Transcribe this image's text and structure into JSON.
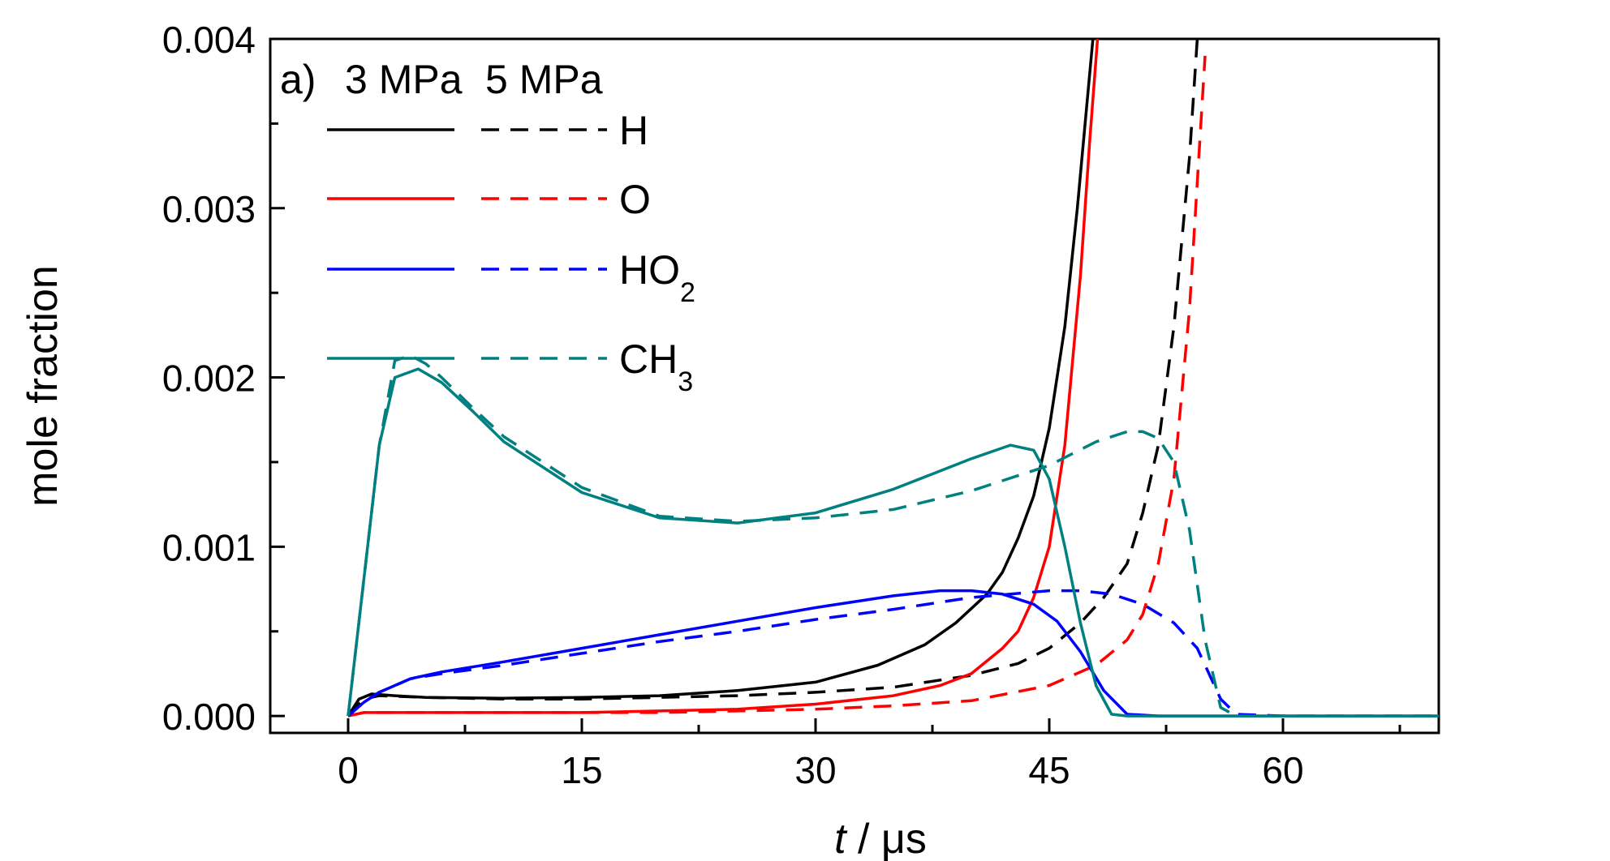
{
  "chart_data": {
    "type": "line",
    "panel_label": "a)",
    "legend_header": [
      "3 MPa",
      "5 MPa"
    ],
    "xlabel_italic": "t",
    "xlabel_rest": " / μs",
    "ylabel": "mole fraction",
    "xlim": [
      -5,
      70
    ],
    "ylim": [
      -0.0001,
      0.004
    ],
    "xticks": [
      0,
      15,
      30,
      45,
      60
    ],
    "xtick_labels": [
      "0",
      "15",
      "30",
      "45",
      "60"
    ],
    "yticks": [
      0.0,
      0.001,
      0.002,
      0.003,
      0.004
    ],
    "ytick_labels": [
      "0.000",
      "0.001",
      "0.002",
      "0.003",
      "0.004"
    ],
    "grid": false,
    "legend_position": "top-left",
    "species": [
      {
        "label": "H",
        "sub": "",
        "color": "#000000"
      },
      {
        "label": "O",
        "sub": "",
        "color": "#ff0000"
      },
      {
        "label": "HO",
        "sub": "2",
        "color": "#0000ff"
      },
      {
        "label": "CH",
        "sub": "3",
        "color": "#008080"
      }
    ],
    "series": [
      {
        "species": "H",
        "pressure": "3 MPa",
        "style": "solid",
        "color": "#000000",
        "x": [
          0,
          0.7,
          1.5,
          3,
          5,
          10,
          15,
          20,
          25,
          30,
          34,
          37,
          39,
          41,
          42,
          43,
          44,
          45,
          46,
          46.8,
          47.4,
          47.8
        ],
        "y": [
          0.0,
          0.0001,
          0.00013,
          0.00012,
          0.00011,
          0.000105,
          0.00011,
          0.00012,
          0.00015,
          0.0002,
          0.0003,
          0.00042,
          0.00055,
          0.00072,
          0.00085,
          0.00105,
          0.0013,
          0.0017,
          0.0023,
          0.003,
          0.0036,
          0.004
        ]
      },
      {
        "species": "H",
        "pressure": "5 MPa",
        "style": "dashed",
        "color": "#000000",
        "x": [
          0,
          1,
          2,
          5,
          10,
          15,
          20,
          25,
          30,
          35,
          40,
          43,
          45,
          47,
          48.5,
          50,
          51,
          52,
          53,
          54,
          54.5
        ],
        "y": [
          0.0,
          0.0001,
          0.00012,
          0.00011,
          0.0001,
          0.0001,
          0.00011,
          0.00012,
          0.00014,
          0.00017,
          0.00024,
          0.00031,
          0.0004,
          0.00055,
          0.0007,
          0.0009,
          0.0012,
          0.0016,
          0.0023,
          0.0033,
          0.004
        ]
      },
      {
        "species": "O",
        "pressure": "3 MPa",
        "style": "solid",
        "color": "#ff0000",
        "x": [
          0,
          1,
          5,
          10,
          15,
          20,
          25,
          30,
          35,
          38,
          40,
          42,
          43,
          44,
          45,
          46,
          47,
          47.6,
          48.1
        ],
        "y": [
          0.0,
          2e-05,
          2e-05,
          2e-05,
          2e-05,
          3e-05,
          4e-05,
          7e-05,
          0.00012,
          0.00018,
          0.00025,
          0.0004,
          0.0005,
          0.0007,
          0.001,
          0.0016,
          0.0026,
          0.0034,
          0.004
        ]
      },
      {
        "species": "O",
        "pressure": "5 MPa",
        "style": "dashed",
        "color": "#ff0000",
        "x": [
          0,
          1,
          5,
          10,
          15,
          20,
          25,
          30,
          35,
          40,
          45,
          48,
          50,
          51,
          52,
          53,
          54,
          54.6,
          55
        ],
        "y": [
          0.0,
          2e-05,
          2e-05,
          2e-05,
          2e-05,
          2e-05,
          3e-05,
          4e-05,
          6e-05,
          9e-05,
          0.00018,
          0.0003,
          0.00045,
          0.0006,
          0.0009,
          0.0014,
          0.0024,
          0.0033,
          0.0039
        ]
      },
      {
        "species": "HO2",
        "pressure": "3 MPa",
        "style": "solid",
        "color": "#0000ff",
        "x": [
          0,
          1,
          2,
          4,
          6,
          10,
          15,
          20,
          25,
          30,
          35,
          38,
          40,
          42,
          44,
          45.5,
          47,
          48.5,
          50,
          52,
          60,
          70
        ],
        "y": [
          0.0,
          8e-05,
          0.00014,
          0.00022,
          0.00026,
          0.00032,
          0.0004,
          0.00048,
          0.00056,
          0.00064,
          0.00071,
          0.00074,
          0.00074,
          0.00072,
          0.00066,
          0.00056,
          0.00038,
          0.00015,
          1e-05,
          0.0,
          0.0,
          0.0
        ]
      },
      {
        "species": "HO2",
        "pressure": "5 MPa",
        "style": "dashed",
        "color": "#0000ff",
        "x": [
          0,
          1,
          2,
          4,
          6,
          10,
          15,
          20,
          25,
          30,
          35,
          40,
          45,
          47,
          49,
          51,
          53,
          54.5,
          56,
          57,
          60,
          70
        ],
        "y": [
          0.0,
          8e-05,
          0.00014,
          0.00022,
          0.00025,
          0.0003,
          0.00037,
          0.00044,
          0.0005,
          0.00057,
          0.00063,
          0.0007,
          0.00074,
          0.00074,
          0.00072,
          0.00066,
          0.00055,
          0.0004,
          0.0001,
          1e-05,
          0.0,
          0.0
        ]
      },
      {
        "species": "CH3",
        "pressure": "3 MPa",
        "style": "solid",
        "color": "#008080",
        "x": [
          0,
          1,
          2,
          3,
          4.5,
          6,
          8,
          10,
          15,
          20,
          25,
          30,
          35,
          40,
          42.5,
          44,
          45,
          46,
          47,
          48,
          49,
          50,
          52,
          60,
          70
        ],
        "y": [
          0.0,
          0.0008,
          0.0016,
          0.002,
          0.00205,
          0.00197,
          0.0018,
          0.00162,
          0.00132,
          0.00117,
          0.00114,
          0.0012,
          0.00134,
          0.00152,
          0.0016,
          0.00157,
          0.0014,
          0.001,
          0.00055,
          0.00018,
          1e-05,
          0.0,
          0.0,
          0.0,
          0.0
        ]
      },
      {
        "species": "CH3",
        "pressure": "5 MPa",
        "style": "dashed",
        "color": "#008080",
        "x": [
          0,
          1,
          2,
          3,
          4,
          5,
          6,
          8,
          10,
          15,
          20,
          25,
          30,
          35,
          40,
          45,
          48,
          50,
          51,
          52,
          53,
          54,
          55,
          56,
          57,
          60,
          70
        ],
        "y": [
          0.0,
          0.0008,
          0.0016,
          0.0021,
          0.00213,
          0.00208,
          0.002,
          0.00182,
          0.00165,
          0.00135,
          0.00118,
          0.00115,
          0.00117,
          0.00122,
          0.00133,
          0.00148,
          0.00162,
          0.00168,
          0.00168,
          0.00164,
          0.0015,
          0.0011,
          0.00045,
          5e-05,
          0.0,
          0.0,
          0.0
        ]
      }
    ]
  }
}
